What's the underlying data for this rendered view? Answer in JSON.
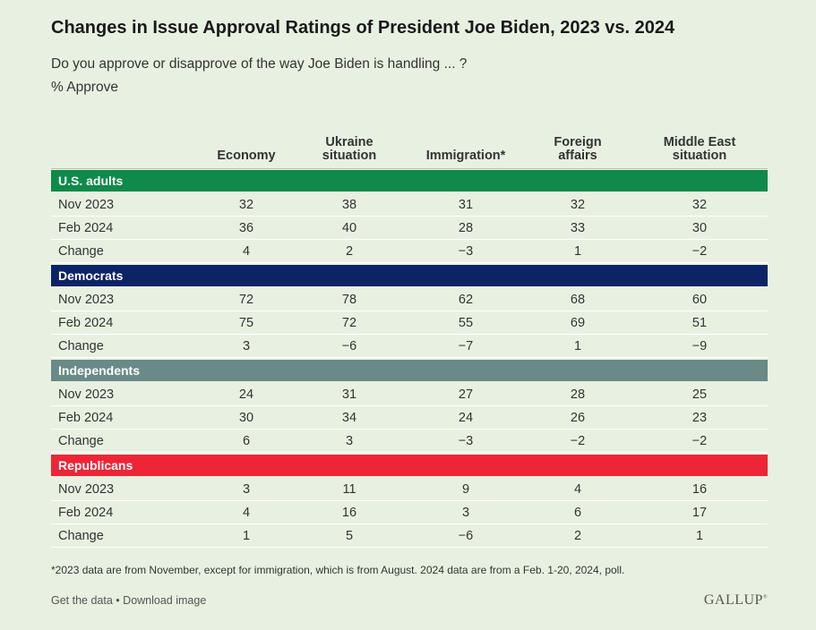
{
  "chart_data": {
    "type": "table",
    "title": "Changes in Issue Approval Ratings of President Joe Biden, 2023 vs. 2024",
    "subtitle": "Do you approve or disapprove of the way Joe Biden is handling ... ?",
    "measure": "% Approve",
    "columns": [
      "Economy",
      "Ukraine situation",
      "Immigration*",
      "Foreign affairs",
      "Middle East situation"
    ],
    "column_headers": [
      "Economy",
      "Ukraine\nsituation",
      "Immigration*",
      "Foreign\naffairs",
      "Middle East\nsituation"
    ],
    "groups": [
      {
        "name": "U.S. adults",
        "color": "#0f8a4a",
        "rows": [
          {
            "label": "Nov 2023",
            "values": [
              "32",
              "38",
              "31",
              "32",
              "32"
            ]
          },
          {
            "label": "Feb 2024",
            "values": [
              "36",
              "40",
              "28",
              "33",
              "30"
            ]
          },
          {
            "label": "Change",
            "values": [
              "4",
              "2",
              "−3",
              "1",
              "−2"
            ]
          }
        ]
      },
      {
        "name": "Democrats",
        "color": "#0c2466",
        "rows": [
          {
            "label": "Nov 2023",
            "values": [
              "72",
              "78",
              "62",
              "68",
              "60"
            ]
          },
          {
            "label": "Feb 2024",
            "values": [
              "75",
              "72",
              "55",
              "69",
              "51"
            ]
          },
          {
            "label": "Change",
            "values": [
              "3",
              "−6",
              "−7",
              "1",
              "−9"
            ]
          }
        ]
      },
      {
        "name": "Independents",
        "color": "#6a8a87",
        "rows": [
          {
            "label": "Nov 2023",
            "values": [
              "24",
              "31",
              "27",
              "28",
              "25"
            ]
          },
          {
            "label": "Feb 2024",
            "values": [
              "30",
              "34",
              "24",
              "26",
              "23"
            ]
          },
          {
            "label": "Change",
            "values": [
              "6",
              "3",
              "−3",
              "−2",
              "−2"
            ]
          }
        ]
      },
      {
        "name": "Republicans",
        "color": "#ee2536",
        "rows": [
          {
            "label": "Nov 2023",
            "values": [
              "3",
              "11",
              "9",
              "4",
              "16"
            ]
          },
          {
            "label": "Feb 2024",
            "values": [
              "4",
              "16",
              "3",
              "6",
              "17"
            ]
          },
          {
            "label": "Change",
            "values": [
              "1",
              "5",
              "−6",
              "2",
              "1"
            ]
          }
        ]
      }
    ]
  },
  "footnote": "*2023 data are from November, except for immigration, which is from August. 2024 data are from a Feb. 1-20, 2024, poll.",
  "links": {
    "get_data": "Get the data",
    "separator": "•",
    "download": "Download image"
  },
  "logo": {
    "text": "GALLUP",
    "mark": "®"
  },
  "colors": {
    "background": "#e8f1e1",
    "row_line": "#ffffff"
  }
}
